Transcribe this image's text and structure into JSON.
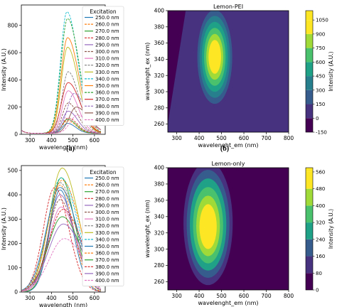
{
  "chart_data": [
    {
      "id": "a",
      "type": "line",
      "panel_label": "(a)",
      "xlabel": "wavelength (nm)",
      "ylabel": "Intensity (A.U.)",
      "xlim": [
        260,
        650
      ],
      "ylim": [
        0,
        950
      ],
      "xticks": [
        300,
        400,
        500,
        600
      ],
      "yticks": [
        0,
        200,
        400,
        600,
        800
      ],
      "legend_title": "Excitation",
      "legend_position": "top-right",
      "series": [
        {
          "name": "250.0 nm",
          "color": "#1f77b4",
          "peak_x": 475,
          "peak_y": 80
        },
        {
          "name": "260.0 nm",
          "color": "#ff7f0e",
          "peak_x": 475,
          "peak_y": 100
        },
        {
          "name": "270.0 nm",
          "color": "#2ca02c",
          "peak_x": 475,
          "peak_y": 110
        },
        {
          "name": "280.0 nm",
          "color": "#d62728",
          "peak_x": 478,
          "peak_y": 120
        },
        {
          "name": "290.0 nm",
          "color": "#9467bd",
          "peak_x": 478,
          "peak_y": 170
        },
        {
          "name": "300.0 nm",
          "color": "#8c564b",
          "peak_x": 478,
          "peak_y": 230
        },
        {
          "name": "310.0 nm",
          "color": "#e377c2",
          "peak_x": 478,
          "peak_y": 320
        },
        {
          "name": "320.0 nm",
          "color": "#7f7f7f",
          "peak_x": 478,
          "peak_y": 460
        },
        {
          "name": "330.0 nm",
          "color": "#bcbd22",
          "peak_x": 475,
          "peak_y": 640
        },
        {
          "name": "340.0 nm",
          "color": "#17becf",
          "peak_x": 472,
          "peak_y": 900
        },
        {
          "name": "350.0 nm",
          "color": "#ff7f0e",
          "peak_x": 475,
          "peak_y": 710
        },
        {
          "name": "360.0 nm",
          "color": "#2ca02c",
          "peak_x": 475,
          "peak_y": 850
        },
        {
          "name": "370.0 nm",
          "color": "#d62728",
          "peak_x": 478,
          "peak_y": 380
        },
        {
          "name": "380.0 nm",
          "color": "#9467bd",
          "peak_x": 505,
          "peak_y": 300
        },
        {
          "name": "390.0 nm",
          "color": "#8c564b",
          "peak_x": 515,
          "peak_y": 200
        },
        {
          "name": "400.0 nm",
          "color": "#e377c2",
          "peak_x": 520,
          "peak_y": 140
        }
      ]
    },
    {
      "id": "b",
      "type": "heatmap",
      "panel_label": "(b)",
      "title": "Lemon-PEI",
      "xlabel": "wavelenght_em (nm)",
      "ylabel": "wavelenght_ex (nm)",
      "xlim": [
        260,
        800
      ],
      "ylim": [
        250,
        400
      ],
      "xticks": [
        300,
        400,
        500,
        600,
        700,
        800
      ],
      "yticks": [
        260,
        280,
        300,
        320,
        340,
        360,
        380,
        400
      ],
      "peak": {
        "x": 470,
        "y": 343
      },
      "colorbar": {
        "label": "Intensity (A.U.)",
        "ticks": [
          -150,
          0,
          150,
          300,
          450,
          600,
          750,
          900,
          1050
        ],
        "range": [
          -150,
          1150
        ]
      }
    },
    {
      "id": "c",
      "type": "line",
      "xlabel": "wavelength (nm)",
      "ylabel": "Intensity (A.U.)",
      "xlim": [
        260,
        650
      ],
      "ylim": [
        0,
        520
      ],
      "xticks": [
        300,
        400,
        500,
        600
      ],
      "yticks": [
        0,
        100,
        200,
        300,
        400,
        500
      ],
      "legend_title": "Excitation",
      "legend_position": "top-right",
      "series": [
        {
          "name": "250.0 nm",
          "color": "#1f77b4",
          "peak_x": 440,
          "peak_y": 420
        },
        {
          "name": "260.0 nm",
          "color": "#ff7f0e",
          "peak_x": 440,
          "peak_y": 440
        },
        {
          "name": "270.0 nm",
          "color": "#2ca02c",
          "peak_x": 445,
          "peak_y": 470
        },
        {
          "name": "280.0 nm",
          "color": "#d62728",
          "peak_x": 415,
          "peak_y": 430
        },
        {
          "name": "290.0 nm",
          "color": "#9467bd",
          "peak_x": 440,
          "peak_y": 400
        },
        {
          "name": "300.0 nm",
          "color": "#8c564b",
          "peak_x": 440,
          "peak_y": 380
        },
        {
          "name": "310.0 nm",
          "color": "#e377c2",
          "peak_x": 445,
          "peak_y": 350
        },
        {
          "name": "320.0 nm",
          "color": "#7f7f7f",
          "peak_x": 440,
          "peak_y": 450
        },
        {
          "name": "330.0 nm",
          "color": "#bcbd22",
          "peak_x": 450,
          "peak_y": 510
        },
        {
          "name": "340.0 nm",
          "color": "#17becf",
          "peak_x": 445,
          "peak_y": 470
        },
        {
          "name": "350.0 nm",
          "color": "#1f77b4",
          "peak_x": 440,
          "peak_y": 430
        },
        {
          "name": "360.0 nm",
          "color": "#ff7f0e",
          "peak_x": 450,
          "peak_y": 460
        },
        {
          "name": "370.0 nm",
          "color": "#2ca02c",
          "peak_x": 450,
          "peak_y": 310
        },
        {
          "name": "380.0 nm",
          "color": "#d62728",
          "peak_x": 455,
          "peak_y": 340
        },
        {
          "name": "390.0 nm",
          "color": "#9467bd",
          "peak_x": 455,
          "peak_y": 280
        },
        {
          "name": "400.0 nm",
          "color": "#e377c2",
          "peak_x": 460,
          "peak_y": 220
        }
      ]
    },
    {
      "id": "d",
      "type": "heatmap",
      "title": "Lemon-only",
      "xlabel": "wavelenght_em (nm)",
      "ylabel": "wavelenght_ex (nm)",
      "xlim": [
        260,
        800
      ],
      "ylim": [
        250,
        400
      ],
      "xticks": [
        300,
        400,
        500,
        600,
        700,
        800
      ],
      "yticks": [
        260,
        280,
        300,
        320,
        340,
        360,
        380,
        400
      ],
      "peak": {
        "x": 440,
        "y": 332
      },
      "colorbar": {
        "label": "Intensity (A.U.)",
        "ticks": [
          0,
          80,
          160,
          240,
          320,
          400,
          480,
          560
        ],
        "range": [
          0,
          580
        ]
      }
    }
  ]
}
